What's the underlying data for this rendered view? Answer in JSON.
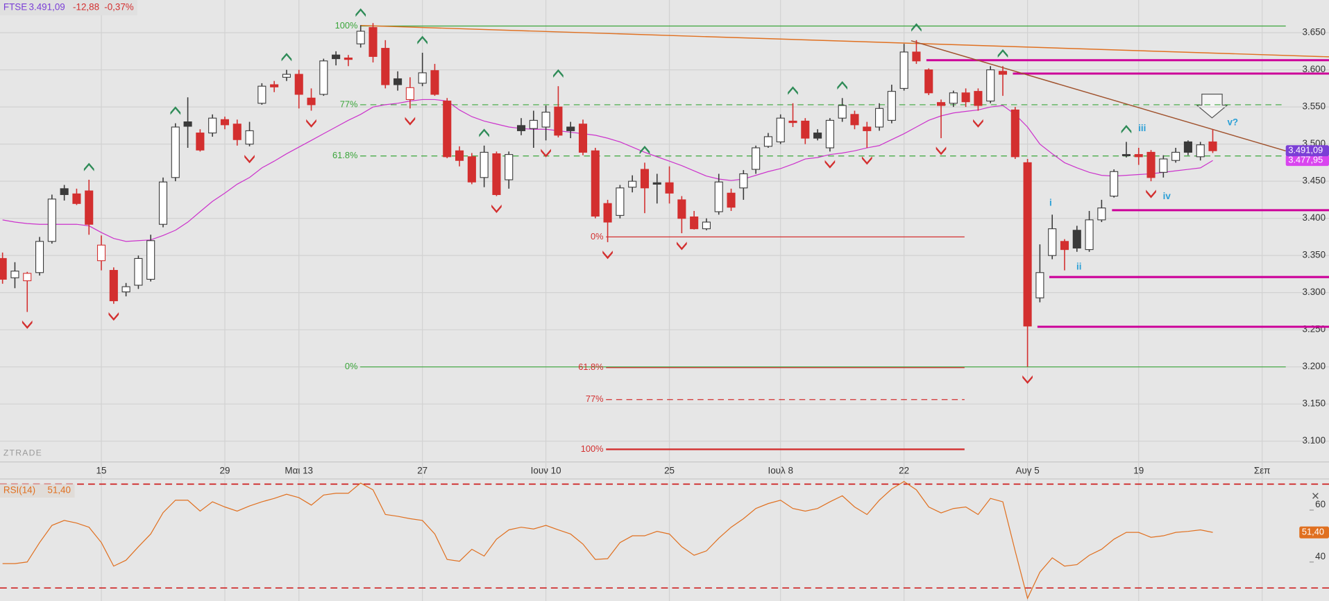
{
  "chart_data": [
    {
      "type": "candlestick",
      "title": "FTSE",
      "change": "-12,88",
      "change_pct": "-0,37%",
      "categories": [
        null,
        null,
        null,
        null,
        null,
        null,
        null,
        null,
        "15",
        null,
        null,
        null,
        null,
        null,
        null,
        null,
        null,
        null,
        "29",
        null,
        null,
        null,
        null,
        null,
        "Μαι 13",
        null,
        null,
        null,
        null,
        null,
        null,
        null,
        null,
        null,
        "27",
        null,
        null,
        null,
        null,
        null,
        null,
        null,
        null,
        null,
        "Ιουν 10",
        null,
        null,
        null,
        null,
        null,
        null,
        null,
        null,
        null,
        "25",
        null,
        null,
        null,
        null,
        null,
        null,
        null,
        null,
        "Ιουλ 8",
        null,
        null,
        null,
        null,
        null,
        null,
        null,
        null,
        null,
        "22",
        null,
        null,
        null,
        null,
        null,
        null,
        null,
        null,
        null,
        "Αυγ 5",
        null,
        null,
        null,
        null,
        null,
        null,
        null,
        null,
        "19",
        null,
        null,
        null,
        null,
        null,
        null,
        null,
        null,
        null,
        "Σεπ"
      ],
      "open": [
        3346,
        3320,
        3316,
        3327,
        3369,
        3440,
        3433,
        3437,
        3343,
        3330,
        3301,
        3310,
        3318,
        3392,
        3455,
        3530,
        3515,
        3515,
        3533,
        3527,
        3500,
        3555,
        3580,
        3590,
        3594,
        3562,
        3567,
        3620,
        3616,
        3635,
        3657,
        3629,
        3588,
        3560,
        3582,
        3599,
        3558,
        3491,
        3483,
        3455,
        3487,
        3452,
        3525,
        3521,
        3523,
        3550,
        3523,
        3527,
        3491,
        3420,
        3404,
        3442,
        3466,
        3448,
        3448,
        3425,
        3402,
        3386,
        3409,
        3434,
        3441,
        3466,
        3497,
        3503,
        3531,
        3531,
        3515,
        3495,
        3535,
        3540,
        3523,
        3523,
        3532,
        3575,
        3624,
        3600,
        3556,
        3555,
        3569,
        3571,
        3558,
        3598,
        3546,
        3475,
        3293,
        3350,
        3369,
        3384,
        3358,
        3398,
        3430,
        3486,
        3486,
        3489,
        3462,
        3478,
        3503,
        3483,
        3503,
        null,
        null,
        null,
        null
      ],
      "high": [
        3354,
        3341,
        3328,
        3375,
        3432,
        3445,
        3440,
        3452,
        3377,
        3334,
        3313,
        3350,
        3378,
        3455,
        3528,
        3563,
        3520,
        3540,
        3537,
        3533,
        3530,
        3582,
        3585,
        3600,
        3600,
        3575,
        3615,
        3625,
        3620,
        3660,
        3663,
        3640,
        3598,
        3590,
        3623,
        3608,
        3562,
        3497,
        3488,
        3498,
        3490,
        3490,
        3535,
        3545,
        3552,
        3578,
        3530,
        3533,
        3495,
        3425,
        3445,
        3458,
        3475,
        3460,
        3470,
        3430,
        3410,
        3400,
        3460,
        3440,
        3465,
        3498,
        3515,
        3540,
        3555,
        3535,
        3520,
        3535,
        3562,
        3545,
        3530,
        3555,
        3580,
        3635,
        3640,
        3602,
        3560,
        3572,
        3575,
        3575,
        3605,
        3605,
        3550,
        3480,
        3365,
        3405,
        3372,
        3390,
        3410,
        3425,
        3466,
        3503,
        3495,
        3492,
        3485,
        3495,
        3505,
        3503,
        3520,
        null,
        null,
        null,
        null
      ],
      "low": [
        3312,
        3306,
        3274,
        3323,
        3366,
        3424,
        3418,
        3378,
        3330,
        3285,
        3295,
        3305,
        3315,
        3388,
        3450,
        3495,
        3490,
        3510,
        3520,
        3498,
        3497,
        3553,
        3570,
        3585,
        3548,
        3545,
        3565,
        3606,
        3605,
        3630,
        3610,
        3575,
        3572,
        3548,
        3578,
        3565,
        3481,
        3470,
        3446,
        3442,
        3430,
        3440,
        3512,
        3495,
        3505,
        3509,
        3508,
        3485,
        3400,
        3368,
        3400,
        3435,
        3407,
        3420,
        3420,
        3380,
        3385,
        3384,
        3405,
        3410,
        3425,
        3460,
        3495,
        3500,
        3523,
        3500,
        3505,
        3490,
        3530,
        3520,
        3495,
        3518,
        3528,
        3572,
        3608,
        3566,
        3508,
        3550,
        3550,
        3545,
        3555,
        3565,
        3480,
        3200,
        3287,
        3345,
        3330,
        3355,
        3355,
        3395,
        3428,
        3482,
        3472,
        3450,
        3455,
        3475,
        3485,
        3478,
        3488,
        null,
        null,
        null,
        null
      ],
      "close": [
        3318,
        3329,
        3326,
        3369,
        3426,
        3432,
        3420,
        3392,
        3364,
        3289,
        3308,
        3346,
        3370,
        3449,
        3523,
        3524,
        3492,
        3535,
        3526,
        3506,
        3518,
        3578,
        3577,
        3594,
        3567,
        3553,
        3612,
        3615,
        3614,
        3652,
        3618,
        3580,
        3580,
        3576,
        3596,
        3567,
        3483,
        3478,
        3449,
        3489,
        3432,
        3486,
        3518,
        3532,
        3543,
        3512,
        3518,
        3489,
        3403,
        3395,
        3441,
        3450,
        3441,
        3446,
        3434,
        3400,
        3386,
        3395,
        3449,
        3415,
        3460,
        3495,
        3510,
        3535,
        3529,
        3508,
        3508,
        3532,
        3552,
        3526,
        3518,
        3548,
        3571,
        3624,
        3612,
        3569,
        3552,
        3569,
        3557,
        3552,
        3600,
        3594,
        3483,
        3255,
        3327,
        3386,
        3358,
        3360,
        3398,
        3414,
        3463,
        3485,
        3483,
        3455,
        3480,
        3489,
        3489,
        3499,
        3491.09,
        null,
        null,
        null,
        null
      ],
      "up_color": "#ffffff",
      "down_color": "#d32f2f",
      "neutral_color": "#3a3a3a",
      "last_label": {
        "value": 3491.09,
        "label": "3.491,09"
      },
      "last_color": "#7b3fd6",
      "ma": {
        "color": "#cc33cc",
        "values": [
          3398,
          3395,
          3393,
          3392,
          3392,
          3392,
          3392,
          3390,
          3381,
          3373,
          3369,
          3370,
          3371,
          3377,
          3384,
          3395,
          3409,
          3423,
          3434,
          3446,
          3455,
          3468,
          3477,
          3487,
          3496,
          3505,
          3514,
          3523,
          3532,
          3540,
          3550,
          3553,
          3555,
          3558,
          3560,
          3560,
          3558,
          3546,
          3537,
          3531,
          3527,
          3523,
          3521,
          3520,
          3520,
          3518,
          3516,
          3514,
          3512,
          3508,
          3503,
          3496,
          3489,
          3483,
          3477,
          3471,
          3464,
          3457,
          3453,
          3451,
          3453,
          3458,
          3463,
          3467,
          3473,
          3480,
          3482,
          3486,
          3488,
          3491,
          3495,
          3498,
          3506,
          3514,
          3523,
          3532,
          3538,
          3542,
          3544,
          3546,
          3550,
          3552,
          3540,
          3523,
          3500,
          3487,
          3475,
          3468,
          3462,
          3458,
          3457,
          3458,
          3459,
          3460,
          3462,
          3464,
          3466,
          3468,
          3477.95,
          null,
          null,
          null,
          null
        ],
        "last_label": {
          "value": 3477.95,
          "label": "3.477,95"
        },
        "label_color": "#d946ef"
      },
      "ylim": [
        3072,
        3694
      ],
      "yticks": [
        {
          "value": 3100,
          "label": "3.100"
        },
        {
          "value": 3150,
          "label": "3.150"
        },
        {
          "value": 3200,
          "label": "3.200"
        },
        {
          "value": 3250,
          "label": "3.250"
        },
        {
          "value": 3300,
          "label": "3.300"
        },
        {
          "value": 3350,
          "label": "3.350"
        },
        {
          "value": 3400,
          "label": "3.400"
        },
        {
          "value": 3450,
          "label": "3.450"
        },
        {
          "value": 3500,
          "label": "3.500"
        },
        {
          "value": 3550,
          "label": "3.550"
        },
        {
          "value": 3600,
          "label": "3.600"
        },
        {
          "value": 3650,
          "label": "3.650"
        }
      ],
      "grid": true,
      "fib_green": {
        "color": "#3aa53a",
        "levels": [
          {
            "value": 3659,
            "label": "100%",
            "dash": false
          },
          {
            "value": 3553,
            "label": "77%",
            "dash": true
          },
          {
            "value": 3484,
            "label": "61.8%",
            "dash": true
          },
          {
            "value": 3200,
            "label": "0%",
            "dash": false
          }
        ]
      },
      "fib_red": {
        "color": "#d32f2f",
        "levels": [
          {
            "value": 3375,
            "label": "0%",
            "dash": false
          },
          {
            "value": 3199,
            "label": "61.8%",
            "dash": false
          },
          {
            "value": 3156,
            "label": "77%",
            "dash": true
          },
          {
            "value": 3089,
            "label": "100%",
            "dash": false
          }
        ]
      },
      "levels": {
        "color": "#cc0099",
        "values": [
          3613,
          3595,
          3411,
          3321,
          3254
        ]
      },
      "waves": {
        "color": "#2a9fd6",
        "labels": [
          "i",
          "ii",
          "iii",
          "iv",
          "v?"
        ]
      },
      "watermark": "ZTRADE"
    },
    {
      "type": "line",
      "title": "RSI(14)",
      "color": "#e07020",
      "values": [
        39.4,
        39.4,
        40.0,
        47.5,
        54.1,
        56.0,
        55.0,
        53.4,
        47.5,
        38.4,
        40.7,
        45.9,
        50.8,
        59.0,
        63.8,
        63.8,
        59.6,
        63.2,
        61.2,
        59.6,
        61.6,
        63.2,
        64.5,
        66.1,
        64.8,
        61.9,
        65.8,
        66.5,
        66.5,
        70.4,
        67.8,
        58.3,
        57.6,
        56.7,
        56.0,
        50.8,
        41.0,
        40.3,
        44.9,
        42.3,
        48.8,
        52.4,
        53.4,
        52.7,
        54.1,
        52.4,
        50.8,
        46.9,
        41.0,
        41.3,
        47.5,
        50.1,
        50.1,
        51.8,
        50.8,
        45.9,
        42.6,
        44.3,
        49.2,
        53.4,
        56.7,
        60.6,
        62.5,
        63.8,
        60.6,
        59.6,
        60.6,
        63.2,
        65.5,
        61.2,
        58.3,
        63.8,
        68.1,
        71.0,
        67.8,
        61.2,
        58.9,
        60.6,
        61.2,
        58.3,
        64.5,
        63.2,
        44.3,
        26.0,
        36.1,
        41.6,
        38.4,
        39.0,
        42.6,
        44.9,
        48.8,
        51.4,
        51.4,
        49.5,
        50.1,
        51.4,
        51.8,
        52.4,
        51.4,
        null,
        null,
        null,
        null
      ],
      "last_label": {
        "value": 51.4,
        "label": "51,40"
      },
      "ylim": [
        25,
        72
      ],
      "yticks": [
        40,
        60
      ],
      "bands": {
        "color": "#cc1111",
        "values": [
          30,
          70
        ]
      }
    }
  ]
}
